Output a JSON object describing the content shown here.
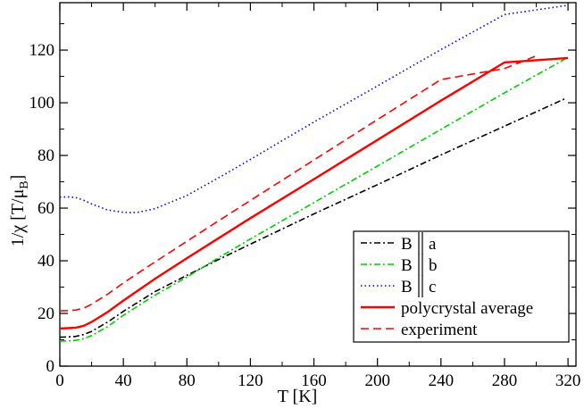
{
  "chart_data": {
    "type": "line",
    "xlabel": "T  [K]",
    "ylabel": "1/χ  [T/μ_B]",
    "xlim": [
      0,
      325
    ],
    "ylim": [
      0,
      138
    ],
    "x_ticks": [
      0,
      40,
      80,
      120,
      160,
      200,
      240,
      280,
      320
    ],
    "x_tick_labels": [
      "0",
      "40",
      "80",
      "120",
      "160",
      "200",
      "240",
      "280",
      "320"
    ],
    "y_ticks": [
      0,
      20,
      40,
      60,
      80,
      100,
      120
    ],
    "y_tick_labels": [
      "0",
      "20",
      "40",
      "60",
      "80",
      "100",
      "120"
    ],
    "grid": false,
    "legend_position": "bottom-right",
    "series": [
      {
        "name": "B || a",
        "legend_main": "B",
        "legend_sub": "a",
        "color": "#000000",
        "dash": "dash-dot",
        "x": [
          0,
          5,
          10,
          15,
          20,
          30,
          40,
          60,
          80,
          100,
          120,
          160,
          200,
          240,
          280,
          318
        ],
        "y": [
          11,
          11.1,
          11.3,
          12,
          13.2,
          16.7,
          20.8,
          28.3,
          34.5,
          40.5,
          46.3,
          57.8,
          68.9,
          80.2,
          91.1,
          101.5
        ]
      },
      {
        "name": "B || b",
        "legend_main": "B",
        "legend_sub": "b",
        "color": "#00cc00",
        "dash": "dash-dot",
        "x": [
          0,
          5,
          10,
          15,
          20,
          30,
          40,
          60,
          80,
          100,
          120,
          160,
          200,
          240,
          280,
          320
        ],
        "y": [
          9.5,
          9.6,
          9.8,
          10.4,
          11.6,
          15,
          19.3,
          27,
          33.8,
          41.2,
          48.3,
          62.1,
          76,
          89.9,
          103.8,
          117.2
        ]
      },
      {
        "name": "B || c",
        "legend_main": "B",
        "legend_sub": "c",
        "color": "#0000ff",
        "dash": "dotted",
        "x": [
          0,
          5,
          10,
          15,
          20,
          30,
          40,
          45,
          50,
          60,
          80,
          100,
          120,
          160,
          200,
          240,
          280,
          320
        ],
        "y": [
          64.2,
          64.3,
          64,
          63,
          61.6,
          59.3,
          58.4,
          58.3,
          58.5,
          59.8,
          64.8,
          71.5,
          78.5,
          92.7,
          106.4,
          120.2,
          133.5,
          137
        ]
      },
      {
        "name": "polycrystal average",
        "legend_main": "polycrystal average",
        "legend_sub": "",
        "color": "#ff0000",
        "dash": "solid",
        "x": [
          0,
          5,
          10,
          15,
          20,
          30,
          40,
          60,
          80,
          100,
          120,
          160,
          200,
          240,
          280,
          320
        ],
        "y": [
          14.3,
          14.4,
          14.6,
          15.3,
          16.8,
          20.5,
          24.9,
          33.2,
          41,
          48.6,
          56.2,
          71,
          85.9,
          100.8,
          115.3,
          117
        ]
      },
      {
        "name": "experiment",
        "legend_main": "experiment",
        "legend_sub": "",
        "color": "#ff0000",
        "dash": "dashed",
        "x": [
          0,
          5,
          10,
          15,
          20,
          30,
          40,
          60,
          80,
          100,
          120,
          160,
          200,
          240,
          280,
          300
        ],
        "y": [
          21,
          21.1,
          21.3,
          22,
          23.5,
          27.3,
          31.6,
          39.6,
          47.4,
          55.2,
          62.9,
          78.3,
          93.6,
          108.8,
          113,
          117.8
        ]
      }
    ]
  }
}
